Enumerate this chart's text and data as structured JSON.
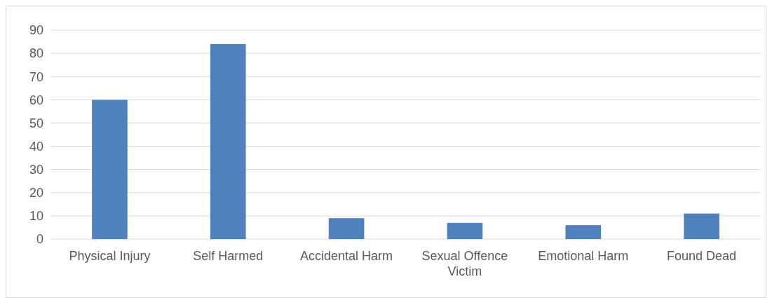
{
  "chart_data": {
    "type": "bar",
    "categories": [
      "Physical Injury",
      "Self Harmed",
      "Accidental Harm",
      "Sexual Offence Victim",
      "Emotional Harm",
      "Found Dead"
    ],
    "values": [
      60,
      84,
      9,
      7,
      6,
      11
    ],
    "color": "#4f81bd",
    "ylim": [
      0,
      90
    ],
    "yticks": [
      0,
      10,
      20,
      30,
      40,
      50,
      60,
      70,
      80,
      90
    ],
    "grid": "y"
  }
}
